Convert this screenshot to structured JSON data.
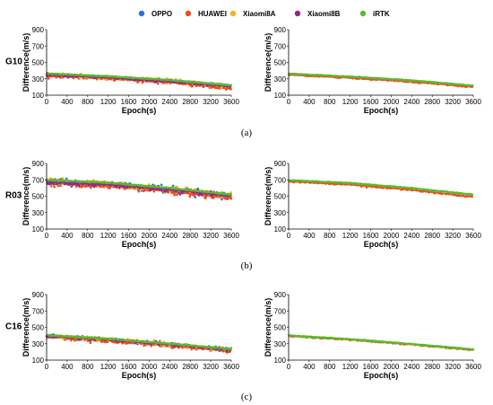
{
  "chart_data": {
    "type": "scatter",
    "legend": {
      "placement": "top-center",
      "entries": [
        {
          "name": "OPPO",
          "color": "#1f77e4"
        },
        {
          "name": "HUAWEI",
          "color": "#f24a1a"
        },
        {
          "name": "Xiaomi8A",
          "color": "#f5b21a"
        },
        {
          "name": "Xiaomi8B",
          "color": "#8e2a8e"
        },
        {
          "name": "iRTK",
          "color": "#5cb82e"
        }
      ]
    },
    "xlabel": "Epoch(s)",
    "ylabel": "Difference(m/s)",
    "xlim": [
      0,
      3600
    ],
    "xticks": [
      0,
      400,
      800,
      1200,
      1600,
      2000,
      2400,
      2800,
      3200,
      3600
    ],
    "ylim": [
      100,
      900
    ],
    "yticks": [
      100,
      300,
      500,
      700,
      900
    ],
    "grid": false,
    "rows": [
      {
        "satellite": "G10",
        "caption": "(a)",
        "left": {
          "series": [
            {
              "name": "OPPO",
              "x": [
                0,
                1200,
                2400,
                3600
              ],
              "y": [
                355,
                318,
                275,
                215
              ],
              "spread": 15
            },
            {
              "name": "HUAWEI",
              "x": [
                0,
                1200,
                2400,
                3600
              ],
              "y": [
                335,
                300,
                258,
                175
              ],
              "spread": 18
            },
            {
              "name": "Xiaomi8A",
              "x": [
                0,
                1200,
                2400,
                3600
              ],
              "y": [
                352,
                315,
                280,
                210
              ],
              "spread": 22
            },
            {
              "name": "Xiaomi8B",
              "x": [
                0,
                1200,
                2400,
                3600
              ],
              "y": [
                348,
                312,
                270,
                205
              ],
              "spread": 12
            },
            {
              "name": "iRTK",
              "x": [
                0,
                1200,
                2400,
                3600
              ],
              "y": [
                365,
                330,
                285,
                220
              ],
              "spread": 4
            }
          ]
        },
        "right": {
          "series": [
            {
              "name": "HUAWEI",
              "x": [
                0,
                1200,
                2400,
                3600
              ],
              "y": [
                348,
                310,
                263,
                200
              ],
              "spread": 6
            },
            {
              "name": "iRTK",
              "x": [
                0,
                1200,
                2400,
                3600
              ],
              "y": [
                362,
                326,
                280,
                215
              ],
              "spread": 3
            }
          ]
        }
      },
      {
        "satellite": "R03",
        "caption": "(b)",
        "left": {
          "series": [
            {
              "name": "OPPO",
              "x": [
                0,
                1200,
                2400,
                3600
              ],
              "y": [
                680,
                640,
                580,
                500
              ],
              "spread": 45
            },
            {
              "name": "HUAWEI",
              "x": [
                0,
                1200,
                2400,
                3600
              ],
              "y": [
                660,
                620,
                560,
                470
              ],
              "spread": 30
            },
            {
              "name": "Xiaomi8A",
              "x": [
                0,
                1200,
                2400,
                3600
              ],
              "y": [
                690,
                650,
                590,
                510
              ],
              "spread": 35
            },
            {
              "name": "Xiaomi8B",
              "x": [
                0,
                1200,
                2400,
                3600
              ],
              "y": [
                670,
                640,
                580,
                500
              ],
              "spread": 25
            },
            {
              "name": "iRTK",
              "x": [
                0,
                1200,
                2400,
                3600
              ],
              "y": [
                700,
                665,
                600,
                520
              ],
              "spread": 5
            }
          ]
        },
        "right": {
          "series": [
            {
              "name": "HUAWEI",
              "x": [
                0,
                1200,
                2400,
                3600
              ],
              "y": [
                680,
                640,
                575,
                490
              ],
              "spread": 10
            },
            {
              "name": "iRTK",
              "x": [
                0,
                1200,
                2400,
                3600
              ],
              "y": [
                695,
                660,
                598,
                518
              ],
              "spread": 4
            }
          ]
        }
      },
      {
        "satellite": "C16",
        "caption": "(c)",
        "left": {
          "series": [
            {
              "name": "OPPO",
              "x": [
                0,
                1200,
                2400,
                3600
              ],
              "y": [
                400,
                350,
                295,
                230
              ],
              "spread": 22
            },
            {
              "name": "HUAWEI",
              "x": [
                0,
                1200,
                2400,
                3600
              ],
              "y": [
                380,
                335,
                275,
                205
              ],
              "spread": 22
            },
            {
              "name": "Xiaomi8A",
              "x": [
                0,
                1200,
                2400,
                3600
              ],
              "y": [
                395,
                352,
                300,
                230
              ],
              "spread": 22
            },
            {
              "name": "Xiaomi8B",
              "x": [
                0,
                1200,
                2400,
                3600
              ],
              "y": [
                395,
                350,
                290,
                225
              ],
              "spread": 15
            },
            {
              "name": "iRTK",
              "x": [
                0,
                1200,
                2400,
                3600
              ],
              "y": [
                405,
                360,
                300,
                235
              ],
              "spread": 4
            }
          ]
        },
        "right": {
          "series": [
            {
              "name": "HUAWEI",
              "x": [
                0,
                1200,
                2400,
                3600
              ],
              "y": [
                392,
                348,
                290,
                222
              ],
              "spread": 5
            },
            {
              "name": "iRTK",
              "x": [
                0,
                1200,
                2400,
                3600
              ],
              "y": [
                400,
                355,
                296,
                230
              ],
              "spread": 3
            }
          ]
        }
      }
    ]
  }
}
